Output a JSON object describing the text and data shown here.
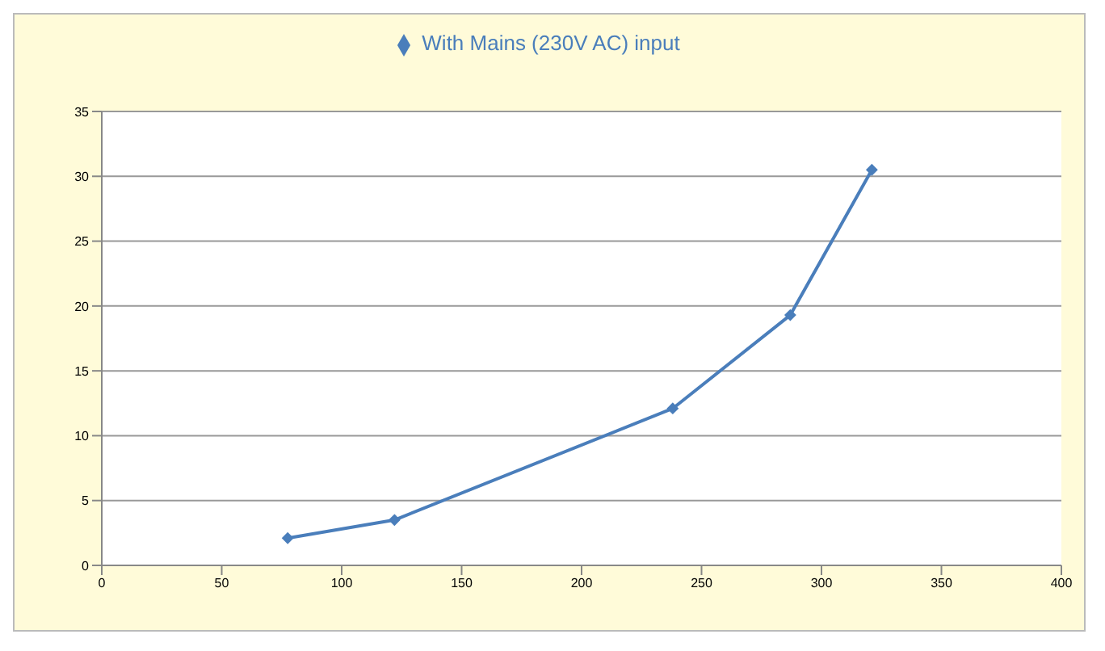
{
  "chart_data": {
    "type": "line",
    "x": [
      77.5,
      122,
      238,
      287,
      321
    ],
    "series": [
      {
        "name": "With Mains (230V AC) input",
        "color": "#4a7ebb",
        "values": [
          2.1,
          3.5,
          12.1,
          19.3,
          30.5
        ]
      }
    ],
    "xlim": [
      0,
      400
    ],
    "xticks": [
      0,
      50,
      100,
      150,
      200,
      250,
      300,
      350,
      400
    ],
    "ylim": [
      0,
      35
    ],
    "yticks": [
      0,
      5,
      10,
      15,
      20,
      25,
      30,
      35
    ],
    "grid": "y",
    "legend": "top",
    "marker": "diamond",
    "line_style": "solid"
  }
}
